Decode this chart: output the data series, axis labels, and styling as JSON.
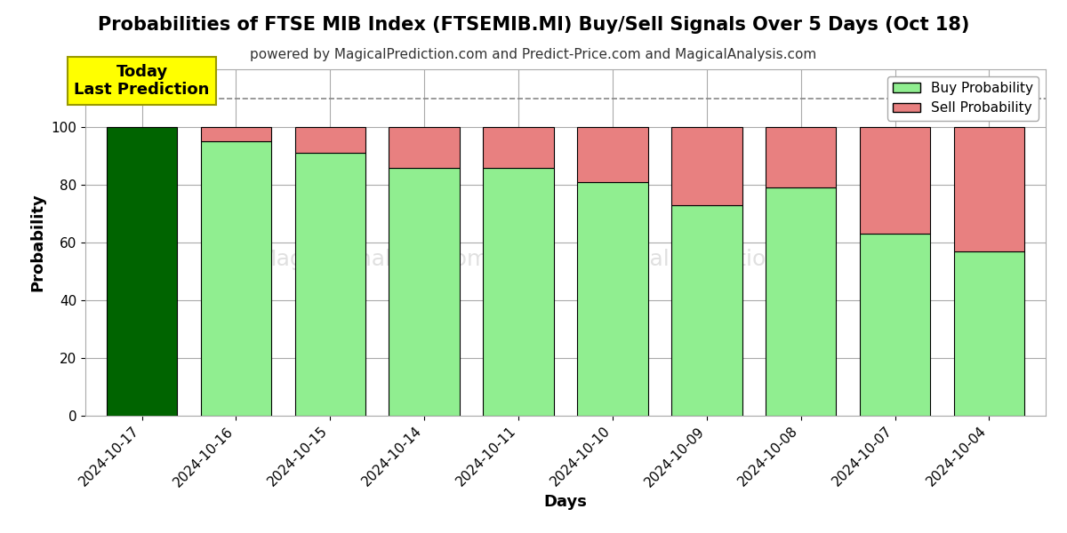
{
  "title": "Probabilities of FTSE MIB Index (FTSEMIB.MI) Buy/Sell Signals Over 5 Days (Oct 18)",
  "subtitle": "powered by MagicalPrediction.com and Predict-Price.com and MagicalAnalysis.com",
  "xlabel": "Days",
  "ylabel": "Probability",
  "dates": [
    "2024-10-17",
    "2024-10-16",
    "2024-10-15",
    "2024-10-14",
    "2024-10-11",
    "2024-10-10",
    "2024-10-09",
    "2024-10-08",
    "2024-10-07",
    "2024-10-04"
  ],
  "buy_values": [
    100,
    95,
    91,
    86,
    86,
    81,
    73,
    79,
    63,
    57
  ],
  "sell_values": [
    0,
    5,
    9,
    14,
    14,
    19,
    27,
    21,
    37,
    43
  ],
  "buy_color_today": "#006400",
  "buy_color_rest": "#90EE90",
  "sell_color": "#E88080",
  "bar_edge_color": "#000000",
  "bar_width": 0.75,
  "ylim": [
    0,
    120
  ],
  "yticks": [
    0,
    20,
    40,
    60,
    80,
    100
  ],
  "dashed_line_y": 110,
  "annotation_text": "Today\nLast Prediction",
  "annotation_bg": "#FFFF00",
  "legend_buy_label": "Buy Probability",
  "legend_sell_label": "Sell Probability",
  "grid_color": "#aaaaaa",
  "background_color": "#ffffff",
  "title_fontsize": 15,
  "subtitle_fontsize": 11,
  "axis_label_fontsize": 13,
  "tick_fontsize": 11
}
